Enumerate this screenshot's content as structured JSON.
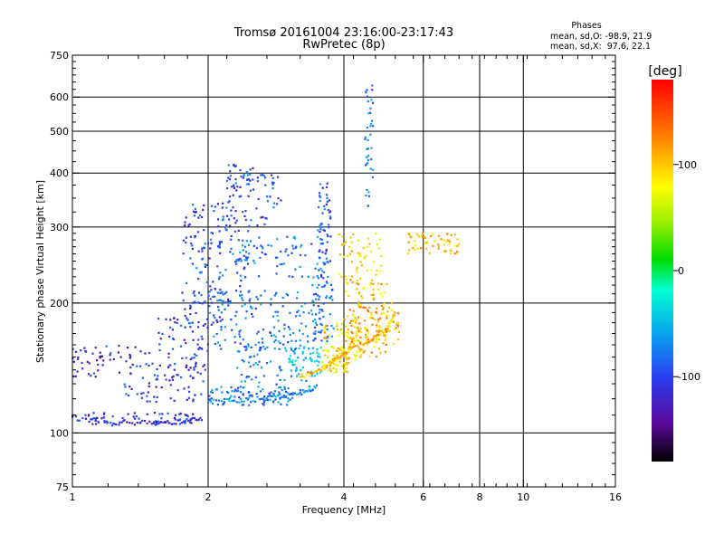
{
  "header": {
    "title_line1": "Tromsø 20161004 23:16:00-23:17:43",
    "title_line2": "RwPretec (8p)"
  },
  "stats": {
    "heading": "Phases",
    "line_o": "mean, sd,O: -98.9, 21.9",
    "line_x": "mean, sd,X:  97.6, 22.1"
  },
  "colorbar": {
    "label": "[deg]",
    "ticks": [
      "100",
      "0",
      "-100"
    ],
    "tick_values": [
      100,
      0,
      -100
    ],
    "range": [
      -180,
      180
    ]
  },
  "chart_data": {
    "type": "scatter",
    "title": "Tromsø 20161004 23:16:00-23:17:43",
    "subtitle": "RwPretec (8p)",
    "xlabel": "Frequency [MHz]",
    "ylabel": "Stationary phase Virtual Height [km]",
    "xscale": "log",
    "yscale": "log",
    "xlim": [
      1,
      16
    ],
    "ylim": [
      75,
      750
    ],
    "xticks": [
      1,
      2,
      4,
      6,
      8,
      10,
      16
    ],
    "yticks": [
      75,
      100,
      200,
      300,
      400,
      500,
      600,
      750
    ],
    "xgrid": [
      2,
      4,
      6,
      8,
      10
    ],
    "ygrid": [
      100,
      200,
      300,
      400,
      500,
      600
    ],
    "color_encoding": "phase [deg]",
    "point_groups": [
      {
        "f": [
          1.0,
          1.85
        ],
        "h": [
          104,
          112
        ],
        "n": 70,
        "phase": -110
      },
      {
        "f": [
          1.0,
          1.5
        ],
        "h": [
          135,
          160
        ],
        "n": 55,
        "phase": -115
      },
      {
        "f": [
          1.3,
          1.95
        ],
        "h": [
          118,
          145
        ],
        "n": 70,
        "phase": -108
      },
      {
        "f": [
          1.55,
          2.0
        ],
        "h": [
          140,
          185
        ],
        "n": 60,
        "phase": -105
      },
      {
        "f": [
          1.75,
          2.15
        ],
        "h": [
          175,
          340
        ],
        "n": 120,
        "phase": -95
      },
      {
        "f": [
          2.1,
          2.5
        ],
        "h": [
          200,
          360
        ],
        "n": 80,
        "phase": -90
      },
      {
        "f": [
          2.2,
          2.55
        ],
        "h": [
          360,
          420
        ],
        "n": 40,
        "phase": -92
      },
      {
        "f": [
          2.55,
          2.9
        ],
        "h": [
          300,
          400
        ],
        "n": 30,
        "phase": -95
      },
      {
        "f": [
          2.0,
          3.1
        ],
        "h": [
          116,
          128
        ],
        "n": 90,
        "phase": -80
      },
      {
        "f": [
          2.3,
          3.4
        ],
        "h": [
          125,
          165
        ],
        "n": 70,
        "phase": -70
      },
      {
        "f": [
          2.0,
          3.5
        ],
        "h": [
          155,
          215
        ],
        "n": 140,
        "phase": -80
      },
      {
        "f": [
          2.3,
          3.6
        ],
        "h": [
          230,
          285
        ],
        "n": 70,
        "phase": -75
      },
      {
        "f": [
          3.0,
          3.6
        ],
        "h": [
          135,
          160
        ],
        "n": 50,
        "phase": -40
      },
      {
        "f": [
          3.5,
          3.75
        ],
        "h": [
          230,
          380
        ],
        "n": 60,
        "phase": -90
      },
      {
        "f": [
          3.4,
          3.8
        ],
        "h": [
          160,
          230
        ],
        "n": 60,
        "phase": -75
      },
      {
        "f": [
          3.5,
          4.1
        ],
        "h": [
          138,
          150
        ],
        "n": 40,
        "phase": 85
      },
      {
        "f": [
          3.6,
          4.4
        ],
        "h": [
          148,
          180
        ],
        "n": 80,
        "phase": 95
      },
      {
        "f": [
          4.0,
          5.0
        ],
        "h": [
          150,
          230
        ],
        "n": 100,
        "phase": 100
      },
      {
        "f": [
          4.1,
          5.3
        ],
        "h": [
          160,
          200
        ],
        "n": 80,
        "phase": 110
      },
      {
        "f": [
          3.9,
          4.9
        ],
        "h": [
          230,
          290
        ],
        "n": 50,
        "phase": 90
      },
      {
        "f": [
          4.45,
          4.65
        ],
        "h": [
          330,
          640
        ],
        "n": 40,
        "phase": -80
      },
      {
        "f": [
          5.5,
          7.2
        ],
        "h": [
          260,
          290
        ],
        "n": 60,
        "phase": 100
      }
    ],
    "line_traces": [
      {
        "f": [
          1.0,
          1.25,
          1.5,
          1.75,
          1.95
        ],
        "h": [
          108,
          106,
          105,
          106,
          108
        ],
        "phase": -115
      },
      {
        "f": [
          2.0,
          2.4,
          2.8,
          3.2,
          3.5
        ],
        "h": [
          118,
          119,
          121,
          124,
          128
        ],
        "phase": -70
      },
      {
        "f": [
          3.2,
          3.55,
          3.8,
          4.1,
          4.6,
          5.0,
          5.2
        ],
        "h": [
          135,
          140,
          148,
          155,
          165,
          175,
          190
        ],
        "phase": 100
      }
    ]
  }
}
